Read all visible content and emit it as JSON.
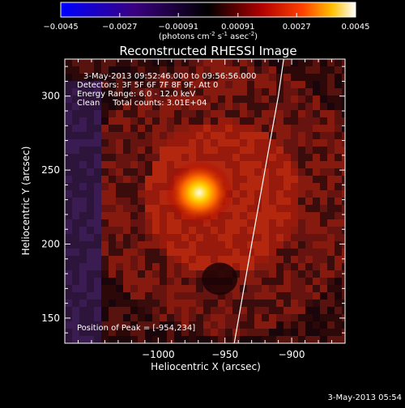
{
  "colorbar": {
    "ticks": [
      "-0.0045",
      "-0.0027",
      "-0.00091",
      "0.00091",
      "0.0027",
      "0.0045"
    ],
    "unit_prefix": "(photons cm",
    "unit_sup1": "-2",
    "unit_mid": " s",
    "unit_sup2": "-1",
    "unit_mid2": " asec",
    "unit_sup3": "-2",
    "unit_suffix": ")"
  },
  "chart_data": {
    "type": "heatmap",
    "title": "Reconstructed RHESSI Image",
    "xlabel": "Heliocentric X (arcsec)",
    "ylabel": "Heliocentric Y (arcsec)",
    "xlim": [
      -1070,
      -860
    ],
    "ylim": [
      133,
      325
    ],
    "xticks": [
      -1000,
      -950,
      -900
    ],
    "yticks": [
      150,
      200,
      250,
      300
    ],
    "xtick_labels": [
      "−1000",
      "−950",
      "−900"
    ],
    "ytick_labels": [
      "150",
      "200",
      "250",
      "300"
    ],
    "color_range": [
      -0.0045,
      0.0045
    ],
    "colormap": "hot-style (blue to black to red to yellow to white)",
    "peak": [
      -954,
      234
    ],
    "limb_curve": [
      [
        -943,
        133
      ],
      [
        -930,
        200
      ],
      [
        -918,
        260
      ],
      [
        -910,
        300
      ],
      [
        -906,
        325
      ]
    ],
    "annotations": [
      "3-May-2013 09:52:46.000 to 09:56:56.000",
      "Detectors: 3F 5F 6F 7F 8F 9F, Att 0",
      "Energy Range: 6.0 - 12.0 keV",
      "Clean     Total counts: 3.01E+04",
      "Position of Peak = [-954,234]"
    ]
  },
  "footer": {
    "timestamp": "3-May-2013 05:54"
  }
}
